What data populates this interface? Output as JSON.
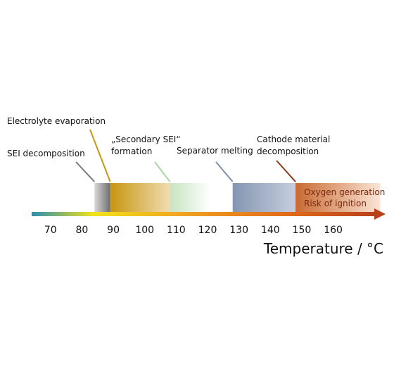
{
  "axis": {
    "xlim": [
      64,
      176
    ],
    "ticks": [
      70,
      80,
      90,
      100,
      110,
      120,
      130,
      140,
      150,
      160
    ],
    "label": "Temperature / °C"
  },
  "events": [
    {
      "lines": [
        "SEI decomposition"
      ],
      "range": [
        84,
        89
      ]
    },
    {
      "lines": [
        "Electrolyte evaporation"
      ],
      "range": [
        89,
        108
      ]
    },
    {
      "lines": [
        "„Secondary SEI“",
        "formation"
      ],
      "range": [
        108,
        121
      ]
    },
    {
      "lines": [
        "Separator melting"
      ],
      "range": [
        128,
        148
      ]
    },
    {
      "lines": [
        "Cathode material",
        "decomposition"
      ],
      "range": [
        148,
        175
      ]
    }
  ],
  "hazard": {
    "lines": [
      "Oxygen generation",
      "Risk of ignition"
    ]
  }
}
